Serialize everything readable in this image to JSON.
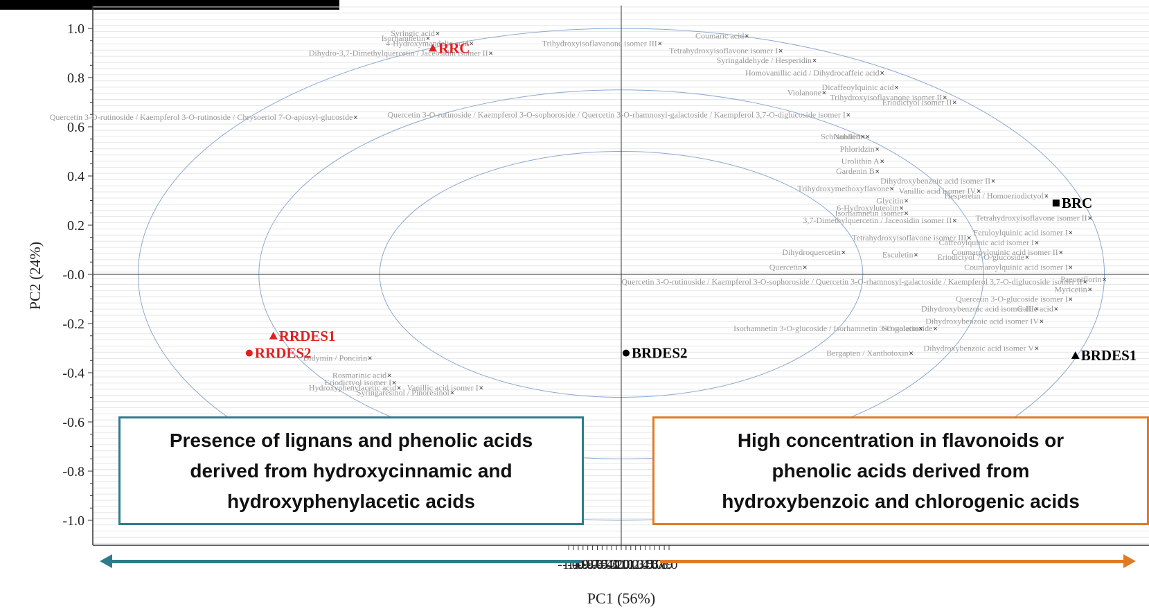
{
  "chart_data": {
    "type": "scatter",
    "title": "",
    "xlabel": "PC1 (56%)",
    "ylabel": "PC2 (24%)",
    "xlim": [
      -1.1,
      1.0
    ],
    "ylim": [
      -1.0,
      1.0
    ],
    "x_ticks": [
      "-1.1",
      "-1.0",
      "-0.9",
      "-0.8",
      "-0.7",
      "-0.6",
      "-0.5",
      "-0.4",
      "-0.3",
      "-0.2",
      "-0.1",
      "0.0",
      "0.1",
      "0.2",
      "0.3",
      "0.4",
      "0.5",
      "0.6",
      "0.7",
      "0.8",
      "0.9",
      "1.0"
    ],
    "y_ticks": [
      "1.0",
      "0.8",
      "0.6",
      "0.4",
      "0.2",
      "-0.0",
      "-0.2",
      "-0.4",
      "-0.6",
      "-0.8",
      "-1.0"
    ],
    "correlation_circles": [
      1.0,
      0.75,
      0.5
    ],
    "samples": [
      {
        "label": "RRDES1",
        "x": -0.72,
        "y": -0.25,
        "marker": "triangle",
        "color": "#e02020"
      },
      {
        "label": "RRDES2",
        "x": -0.77,
        "y": -0.32,
        "marker": "circle",
        "color": "#e02020"
      },
      {
        "label": "RRC",
        "x": -0.39,
        "y": 0.92,
        "marker": "triangle",
        "color": "#e02020"
      },
      {
        "label": "BRC",
        "x": 0.9,
        "y": 0.29,
        "marker": "square",
        "color": "#000000"
      },
      {
        "label": "BRDES1",
        "x": 0.94,
        "y": -0.33,
        "marker": "triangle",
        "color": "#000000"
      },
      {
        "label": "BRDES2",
        "x": 0.01,
        "y": -0.32,
        "marker": "circle",
        "color": "#000000"
      }
    ],
    "variables": [
      {
        "label": "Syringic acid",
        "x": -0.38,
        "y": 0.98
      },
      {
        "label": "4-Hydroxymandelic acid",
        "x": -0.31,
        "y": 0.94
      },
      {
        "label": "Isorhamnetin",
        "x": -0.4,
        "y": 0.96
      },
      {
        "label": "Dihydro-3,7-Dimethylquercetin / Jaceosidin isomer II",
        "x": -0.27,
        "y": 0.9
      },
      {
        "label": "Coumaric acid",
        "x": 0.26,
        "y": 0.97
      },
      {
        "label": "Trihydroxyisoflavanone isomer III",
        "x": 0.08,
        "y": 0.94
      },
      {
        "label": "Tetrahydroxyisoflavone isomer I",
        "x": 0.33,
        "y": 0.91
      },
      {
        "label": "Syringaldehyde / Hesperidin",
        "x": 0.4,
        "y": 0.87
      },
      {
        "label": "Homovanillic acid / Dihydrocaffeic acid",
        "x": 0.54,
        "y": 0.82
      },
      {
        "label": "Dicaffeoylquinic acid",
        "x": 0.57,
        "y": 0.76
      },
      {
        "label": "Violanone",
        "x": 0.42,
        "y": 0.74
      },
      {
        "label": "Trihydroxyisoflavanone isomer II",
        "x": 0.67,
        "y": 0.72
      },
      {
        "label": "Eriodictyol isomer II",
        "x": 0.69,
        "y": 0.7
      },
      {
        "label": "Quercetin 3-O-rutinoside / Kaempferol 3-O-rutinoside / Chrysoeriol 7-O-apiosyl-glucoside",
        "x": -0.55,
        "y": 0.64
      },
      {
        "label": "Quercetin 3-O-rutinoside / Kaempferol 3-O-sophoroside / Quercetin 3-O-rhamnosyl-galactoside / Kaempferol 3,7-O-diglucoside isomer I",
        "x": 0.47,
        "y": 0.65
      },
      {
        "label": "Schisandrin",
        "x": 0.5,
        "y": 0.56
      },
      {
        "label": "Nobiletin",
        "x": 0.51,
        "y": 0.56
      },
      {
        "label": "Phloridzin",
        "x": 0.53,
        "y": 0.51
      },
      {
        "label": "Urolithin A",
        "x": 0.54,
        "y": 0.46
      },
      {
        "label": "Gardenin B",
        "x": 0.53,
        "y": 0.42
      },
      {
        "label": "Dihydroxybenzoic acid isomer II",
        "x": 0.77,
        "y": 0.38
      },
      {
        "label": "Trihydroxymethoxyflavone",
        "x": 0.56,
        "y": 0.35
      },
      {
        "label": "Vanillic acid isomer IV",
        "x": 0.74,
        "y": 0.34
      },
      {
        "label": "Hesperetin / Homoeriodictyol",
        "x": 0.88,
        "y": 0.32
      },
      {
        "label": "Glycitin",
        "x": 0.59,
        "y": 0.3
      },
      {
        "label": "6-Hydroxyluteolin",
        "x": 0.58,
        "y": 0.27
      },
      {
        "label": "Isorhamnetin isomer",
        "x": 0.59,
        "y": 0.25
      },
      {
        "label": "3,7-Dimethylquercetin / Jaceosidin isomer II",
        "x": 0.69,
        "y": 0.22
      },
      {
        "label": "Tetrahydroxyisoflavone isomer II",
        "x": 0.97,
        "y": 0.23
      },
      {
        "label": "Feruloylquinic acid isomer I",
        "x": 0.93,
        "y": 0.17
      },
      {
        "label": "Tetrahydroxyisoflavone isomer III",
        "x": 0.72,
        "y": 0.15
      },
      {
        "label": "Caffeoylquinic acid isomer I",
        "x": 0.86,
        "y": 0.13
      },
      {
        "label": "Dihydroquercetin",
        "x": 0.46,
        "y": 0.09
      },
      {
        "label": "Esculetin",
        "x": 0.61,
        "y": 0.08
      },
      {
        "label": "Coumaroylquinic acid isomer II",
        "x": 0.91,
        "y": 0.09
      },
      {
        "label": "Eriodictyol 7-O-glucoside",
        "x": 0.84,
        "y": 0.07
      },
      {
        "label": "Quercetin",
        "x": 0.38,
        "y": 0.03
      },
      {
        "label": "Coumaroylquinic acid isomer I",
        "x": 0.93,
        "y": 0.03
      },
      {
        "label": "Paeoniflorin",
        "x": 1.0,
        "y": -0.02
      },
      {
        "label": "Myricetin",
        "x": 0.97,
        "y": -0.06
      },
      {
        "label": "Quercetin 3-O-rutinoside / Kaempferol 3-O-sophoroside / Quercetin 3-O-rhamnosyl-galactoside / Kaempferol 3,7-O-diglucoside isomer II",
        "x": 0.96,
        "y": -0.03
      },
      {
        "label": "Quercetin 3-O-glucoside isomer I",
        "x": 0.93,
        "y": -0.1
      },
      {
        "label": "Dihydroxybenzoic acid isomer III",
        "x": 0.86,
        "y": -0.14
      },
      {
        "label": "Gallic acid",
        "x": 0.9,
        "y": -0.14
      },
      {
        "label": "Dihydroxybenzoic acid isomer IV",
        "x": 0.87,
        "y": -0.19
      },
      {
        "label": "Isorhamnetin 3-O-glucoside / Isorhamnetin 3-O-galactoside",
        "x": 0.65,
        "y": -0.22
      },
      {
        "label": "Scopoletin",
        "x": 0.62,
        "y": -0.22
      },
      {
        "label": "Dihydroxybenzoic acid isomer V",
        "x": 0.86,
        "y": -0.3
      },
      {
        "label": "Bergapten / Xanthotoxin",
        "x": 0.6,
        "y": -0.32
      },
      {
        "label": "Didymin / Poncirin",
        "x": -0.52,
        "y": -0.34
      },
      {
        "label": "Rosmarinic acid",
        "x": -0.48,
        "y": -0.41
      },
      {
        "label": "Eriodictyol isomer I",
        "x": -0.47,
        "y": -0.44
      },
      {
        "label": "Vanillic acid isomer I",
        "x": -0.29,
        "y": -0.46
      },
      {
        "label": "Hydroxyphenylacetic acid",
        "x": -0.46,
        "y": -0.46
      },
      {
        "label": "Syringaresinol / Pinoresinol",
        "x": -0.35,
        "y": -0.48
      }
    ],
    "legend": "none",
    "grid": "horizontal"
  },
  "annotations": {
    "left_box": [
      "Presence of lignans and phenolic acids",
      "derived from hydroxycinnamic and",
      "hydroxyphenylacetic acids"
    ],
    "right_box": [
      "High concentration in flavonoids or",
      "phenolic acids derived from",
      "hydroxybenzoic and chlorogenic acids"
    ]
  }
}
